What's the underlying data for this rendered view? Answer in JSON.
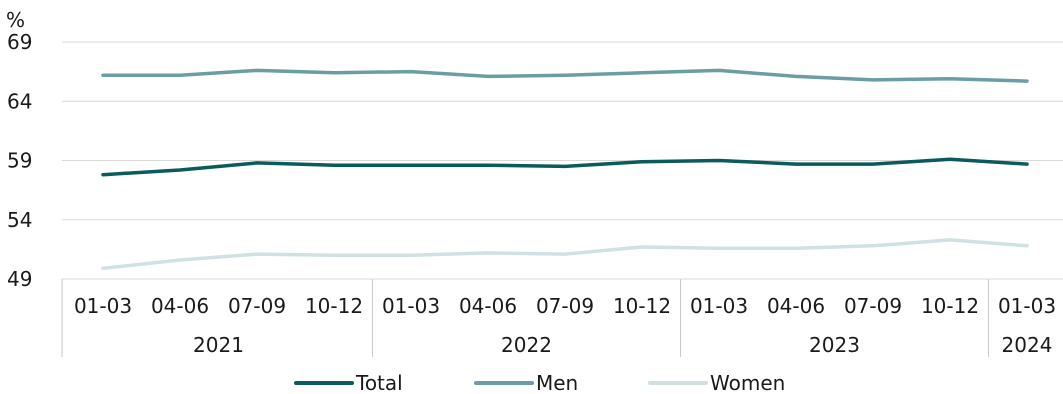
{
  "chart_data": {
    "type": "line",
    "y_unit": "%",
    "ylim": [
      49,
      69
    ],
    "yticks": [
      49,
      54,
      59,
      64,
      69
    ],
    "grid": "horizontal",
    "legend_position": "bottom-center",
    "categories": [
      "01-03",
      "04-06",
      "07-09",
      "10-12",
      "01-03",
      "04-06",
      "07-09",
      "10-12",
      "01-03",
      "04-06",
      "07-09",
      "10-12",
      "01-03"
    ],
    "year_groups": [
      {
        "label": "2021",
        "start": 0,
        "end": 3
      },
      {
        "label": "2022",
        "start": 4,
        "end": 7
      },
      {
        "label": "2023",
        "start": 8,
        "end": 11
      },
      {
        "label": "2024",
        "start": 12,
        "end": 12
      }
    ],
    "series": [
      {
        "name": "Total",
        "color": "#0b5a5e",
        "values": [
          57.8,
          58.2,
          58.8,
          58.6,
          58.6,
          58.6,
          58.5,
          58.9,
          59.0,
          58.7,
          58.7,
          59.1,
          58.7
        ]
      },
      {
        "name": "Men",
        "color": "#6a9ea4",
        "values": [
          66.2,
          66.2,
          66.6,
          66.4,
          66.5,
          66.1,
          66.2,
          66.4,
          66.6,
          66.1,
          65.8,
          65.9,
          65.7
        ]
      },
      {
        "name": "Women",
        "color": "#cfe1e3",
        "values": [
          49.9,
          50.6,
          51.1,
          51.0,
          51.0,
          51.2,
          51.1,
          51.7,
          51.6,
          51.6,
          51.8,
          52.3,
          51.8
        ]
      }
    ]
  }
}
